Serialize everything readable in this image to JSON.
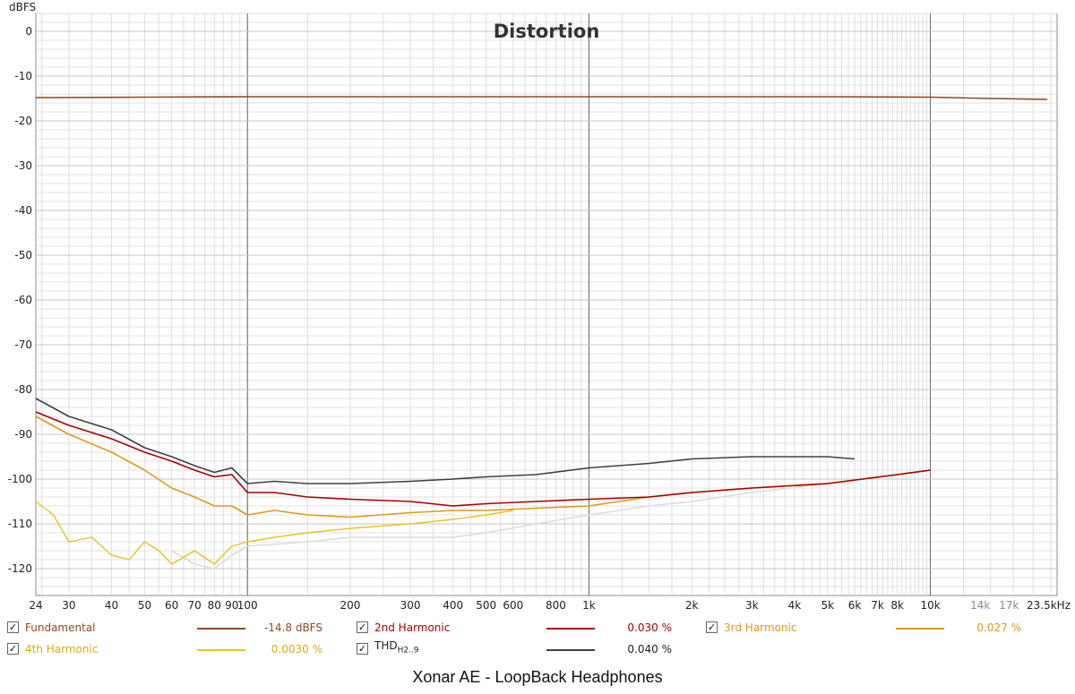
{
  "chart_data": {
    "type": "line",
    "title": "Distortion",
    "ylabel": "dBFS",
    "xlabel_unit": "Hz",
    "x_scale": "log",
    "xlim": [
      24,
      23500
    ],
    "ylim": [
      -126,
      4
    ],
    "grid": true,
    "y_ticks": [
      "0",
      "-10",
      "-20",
      "-30",
      "-40",
      "-50",
      "-60",
      "-70",
      "-80",
      "-90",
      "-100",
      "-110",
      "-120"
    ],
    "x_ticks": [
      {
        "f": 24,
        "label": "24"
      },
      {
        "f": 30,
        "label": "30"
      },
      {
        "f": 40,
        "label": "40"
      },
      {
        "f": 50,
        "label": "50"
      },
      {
        "f": 60,
        "label": "60"
      },
      {
        "f": 70,
        "label": "70"
      },
      {
        "f": 80,
        "label": "80"
      },
      {
        "f": 90,
        "label": "90"
      },
      {
        "f": 100,
        "label": "100"
      },
      {
        "f": 200,
        "label": "200"
      },
      {
        "f": 300,
        "label": "300"
      },
      {
        "f": 400,
        "label": "400"
      },
      {
        "f": 500,
        "label": "500"
      },
      {
        "f": 600,
        "label": "600"
      },
      {
        "f": 800,
        "label": "800"
      },
      {
        "f": 1000,
        "label": "1k"
      },
      {
        "f": 2000,
        "label": "2k"
      },
      {
        "f": 3000,
        "label": "3k"
      },
      {
        "f": 4000,
        "label": "4k"
      },
      {
        "f": 5000,
        "label": "5k"
      },
      {
        "f": 6000,
        "label": "6k"
      },
      {
        "f": 7000,
        "label": "7k"
      },
      {
        "f": 8000,
        "label": "8k"
      },
      {
        "f": 10000,
        "label": "10k"
      },
      {
        "f": 14000,
        "label": "14k",
        "muted": true
      },
      {
        "f": 17000,
        "label": "17k",
        "muted": true
      },
      {
        "f": 23500,
        "label": "23.5kHz"
      }
    ],
    "series": [
      {
        "key": "fundamental",
        "name": "Fundamental",
        "value": "-14.8 dBFS",
        "color": "#8b4a24",
        "width": 1.6,
        "x": [
          24,
          50,
          100,
          200,
          500,
          1000,
          2000,
          5000,
          10000,
          15000,
          22000
        ],
        "y": [
          -14.8,
          -14.7,
          -14.6,
          -14.6,
          -14.6,
          -14.6,
          -14.6,
          -14.6,
          -14.7,
          -15.0,
          -15.2
        ]
      },
      {
        "key": "h2",
        "name": "2nd Harmonic",
        "value": "0.030 %",
        "color": "#aa0000",
        "width": 1.6,
        "x": [
          24,
          30,
          40,
          50,
          60,
          70,
          80,
          90,
          100,
          120,
          150,
          200,
          300,
          400,
          500,
          700,
          1000,
          1500,
          2000,
          3000,
          5000,
          8000,
          10000
        ],
        "y": [
          -85,
          -88,
          -91,
          -94,
          -96,
          -98,
          -99.5,
          -99,
          -103,
          -103,
          -104,
          -104.5,
          -105,
          -106,
          -105.5,
          -105,
          -104.5,
          -104,
          -103,
          -102,
          -101,
          -99,
          -98
        ]
      },
      {
        "key": "h3",
        "name": "3rd Harmonic",
        "value": "0.027 %",
        "color": "#dd9a1c",
        "width": 1.6,
        "x": [
          24,
          30,
          40,
          50,
          60,
          70,
          80,
          90,
          100,
          120,
          150,
          200,
          300,
          400,
          500,
          700,
          1000,
          1500,
          2000,
          3000,
          5000,
          8000,
          10000
        ],
        "y": [
          -86,
          -90,
          -94,
          -98,
          -102,
          -104,
          -106,
          -106,
          -108,
          -107,
          -108,
          -108.5,
          -107.5,
          -107,
          -107,
          -106.5,
          -106,
          -104,
          -103,
          -102,
          -101,
          -99,
          -98
        ]
      },
      {
        "key": "h4",
        "name": "4th Harmonic",
        "value": "0.0030 %",
        "color": "#e8c420",
        "width": 1.4,
        "x": [
          24,
          27,
          30,
          35,
          40,
          45,
          50,
          55,
          60,
          70,
          80,
          90,
          100,
          120,
          150,
          200,
          300,
          400,
          500,
          600
        ],
        "y": [
          -105,
          -108,
          -114,
          -113,
          -117,
          -118,
          -114,
          -116,
          -119,
          -116,
          -119,
          -115,
          -114,
          -113,
          -112,
          -111,
          -110,
          -109,
          -108,
          -107
        ]
      },
      {
        "key": "h5",
        "name": "",
        "value": "",
        "color": "#dcdcdc",
        "width": 1.6,
        "x": [
          60,
          70,
          80,
          90,
          100,
          150,
          200,
          300,
          400,
          500,
          700,
          1000,
          1500,
          2000,
          3000,
          5000,
          8000,
          10000
        ],
        "y": [
          -116,
          -119,
          -120,
          -117,
          -115,
          -114,
          -113,
          -113,
          -113,
          -112,
          -110,
          -108,
          -106,
          -105,
          -103,
          -101,
          -99,
          -98
        ]
      },
      {
        "key": "thd",
        "name": "THD",
        "name_sub": "H2..9",
        "value": "0.040 %",
        "color": "#404040",
        "width": 1.6,
        "x": [
          24,
          30,
          40,
          50,
          60,
          70,
          80,
          90,
          100,
          120,
          150,
          200,
          300,
          400,
          500,
          700,
          1000,
          1500,
          2000,
          3000,
          4000,
          5000,
          6000
        ],
        "y": [
          -82,
          -86,
          -89,
          -93,
          -95,
          -97,
          -98.5,
          -97.5,
          -101,
          -100.5,
          -101,
          -101,
          -100.5,
          -100,
          -99.5,
          -99,
          -97.5,
          -96.5,
          -95.5,
          -95,
          -95,
          -95,
          -95.5
        ]
      }
    ]
  },
  "caption": "Xonar AE - LoopBack Headphones"
}
